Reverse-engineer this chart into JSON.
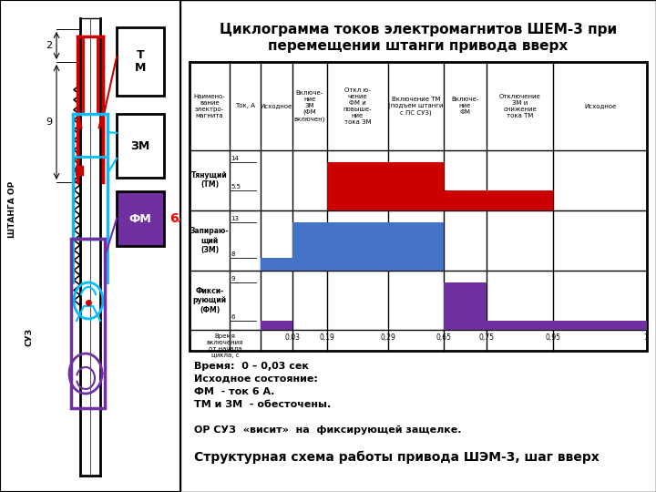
{
  "title_line1": "Циклограмма токов электромагнитов ШЕМ-3 при",
  "title_line2": "перемещении штанги привода вверх",
  "bg_color": "#ffffff",
  "col_headers": [
    "Наимено-\nвание\nэлектро-\nмагнита",
    "Ток, А",
    "Исходное",
    "Включе-\nние\nЗМ\n(ФМ\nвключен)",
    "Откл ю-\nчение\nФМ и\nповыше-\nние\nтока ЗМ",
    "Включение ТМ\n(подъем штанги\nс ПС СУЗ)",
    "Включе-\nние\nФМ",
    "Отключение\nЗМ и\nснижение\nтока ТМ",
    "Исходное"
  ],
  "time_labels": [
    "0.03",
    "0,19",
    "0,29",
    "0,65",
    "0,75",
    "0,95",
    "1"
  ],
  "tm_color": "#cc0000",
  "zm_color": "#4472c4",
  "fm_color": "#7030a0",
  "annotation_lines": [
    "Время:  0 – 0,03 сек",
    "Исходное состояние:",
    "ФМ  - ток 6 А.",
    "ТМ и ЗМ  - обесточены.",
    "",
    "ОР СУЗ  «висит»  на  фиксирующей защелке.",
    "",
    "Структурная схема работы привода ШЭМ-3, шаг вверх"
  ]
}
